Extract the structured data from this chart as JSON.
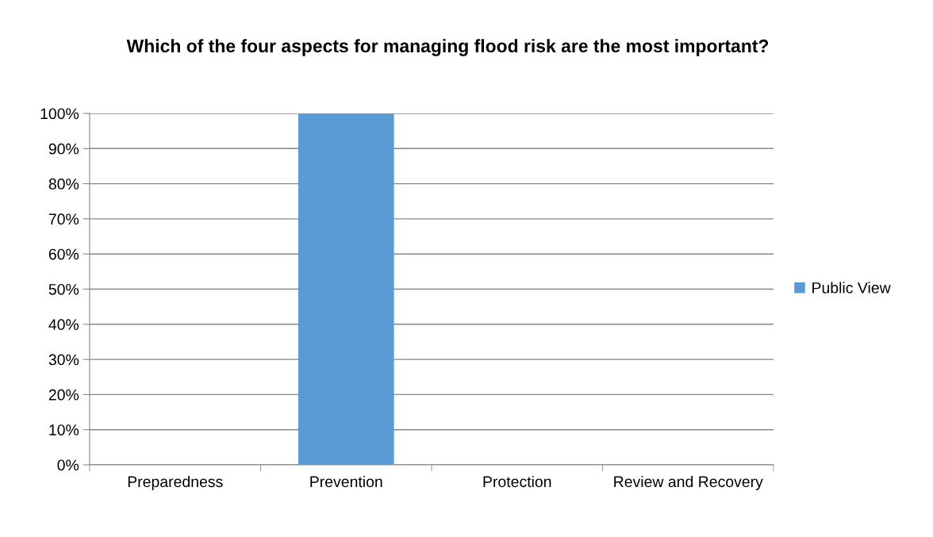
{
  "chart_data": {
    "type": "bar",
    "title": "Which of the four aspects for managing flood risk are the most important?",
    "categories": [
      "Preparedness",
      "Prevention",
      "Protection",
      "Review and Recovery"
    ],
    "series": [
      {
        "name": "Public View",
        "color": "#5b9bd5",
        "values": [
          0,
          100,
          0,
          0
        ]
      }
    ],
    "ylim": [
      0,
      100
    ],
    "yticks": [
      {
        "value": 0,
        "label": "0%"
      },
      {
        "value": 10,
        "label": "10%"
      },
      {
        "value": 20,
        "label": "20%"
      },
      {
        "value": 30,
        "label": "30%"
      },
      {
        "value": 40,
        "label": "40%"
      },
      {
        "value": 50,
        "label": "50%"
      },
      {
        "value": 60,
        "label": "60%"
      },
      {
        "value": 70,
        "label": "70%"
      },
      {
        "value": 80,
        "label": "80%"
      },
      {
        "value": 90,
        "label": "90%"
      },
      {
        "value": 100,
        "label": "100%"
      }
    ],
    "grid": "y",
    "legend": "right"
  }
}
